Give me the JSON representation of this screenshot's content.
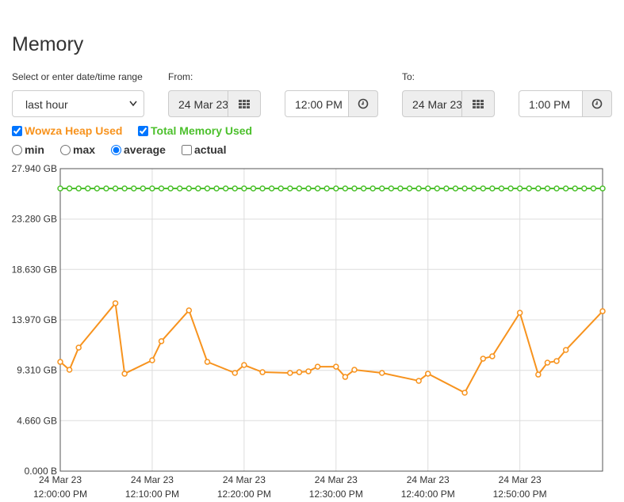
{
  "header": {
    "title": "Memory"
  },
  "controls": {
    "range_label": "Select or enter date/time range",
    "range": "last hour",
    "from_label": "From:",
    "from_date": "24 Mar 23",
    "from_time": "12:00 PM",
    "to_label": "To:",
    "to_date": "24 Mar 23",
    "to_time": "1:00 PM"
  },
  "stat_options": [
    {
      "label": "min",
      "checked": false
    },
    {
      "label": "max",
      "checked": false
    },
    {
      "label": "average",
      "checked": true
    }
  ],
  "actual_option": {
    "label": "actual",
    "checked": false
  },
  "chart_data": {
    "type": "line",
    "series": [
      {
        "name": "Wowza Heap Used",
        "color": "#f7931e",
        "checked": true,
        "x": [
          "12:00:00",
          "12:01:00",
          "12:02:00",
          "12:06:00",
          "12:07:00",
          "12:10:00",
          "12:11:00",
          "12:14:00",
          "12:16:00",
          "12:19:00",
          "12:20:00",
          "12:22:00",
          "12:25:00",
          "12:26:00",
          "12:27:00",
          "12:28:00",
          "12:30:00",
          "12:31:00",
          "12:32:00",
          "12:35:00",
          "12:39:00",
          "12:40:00",
          "12:44:00",
          "12:46:00",
          "12:47:00",
          "12:50:00",
          "12:52:00",
          "12:53:00",
          "12:54:00",
          "12:55:00",
          "12:59:00"
        ],
        "values": [
          10.09,
          9.36,
          11.41,
          15.51,
          9.0,
          10.24,
          12.0,
          14.85,
          10.09,
          9.07,
          9.8,
          9.14,
          9.07,
          9.14,
          9.22,
          9.65,
          9.65,
          8.7,
          9.36,
          9.07,
          8.34,
          9.0,
          7.24,
          10.39,
          10.61,
          14.63,
          8.92,
          10.02,
          10.17,
          11.19,
          14.77
        ]
      },
      {
        "name": "Total Memory Used",
        "color": "#4cc02c",
        "checked": true,
        "x": [
          "12:00:00",
          "12:01:00",
          "12:02:00",
          "12:03:00",
          "12:04:00",
          "12:05:00",
          "12:06:00",
          "12:07:00",
          "12:08:00",
          "12:09:00",
          "12:10:00",
          "12:11:00",
          "12:12:00",
          "12:13:00",
          "12:14:00",
          "12:15:00",
          "12:16:00",
          "12:17:00",
          "12:18:00",
          "12:19:00",
          "12:20:00",
          "12:21:00",
          "12:22:00",
          "12:23:00",
          "12:24:00",
          "12:25:00",
          "12:26:00",
          "12:27:00",
          "12:28:00",
          "12:29:00",
          "12:30:00",
          "12:31:00",
          "12:32:00",
          "12:33:00",
          "12:34:00",
          "12:35:00",
          "12:36:00",
          "12:37:00",
          "12:38:00",
          "12:39:00",
          "12:40:00",
          "12:41:00",
          "12:42:00",
          "12:43:00",
          "12:44:00",
          "12:45:00",
          "12:46:00",
          "12:47:00",
          "12:48:00",
          "12:49:00",
          "12:50:00",
          "12:51:00",
          "12:52:00",
          "12:53:00",
          "12:54:00",
          "12:55:00",
          "12:56:00",
          "12:57:00",
          "12:58:00",
          "12:59:00"
        ],
        "values": [
          26.11,
          26.11,
          26.11,
          26.11,
          26.11,
          26.11,
          26.11,
          26.11,
          26.11,
          26.11,
          26.11,
          26.11,
          26.11,
          26.11,
          26.11,
          26.11,
          26.11,
          26.11,
          26.11,
          26.11,
          26.11,
          26.11,
          26.11,
          26.11,
          26.11,
          26.11,
          26.11,
          26.11,
          26.11,
          26.11,
          26.11,
          26.11,
          26.11,
          26.11,
          26.11,
          26.11,
          26.11,
          26.11,
          26.11,
          26.11,
          26.11,
          26.11,
          26.11,
          26.11,
          26.11,
          26.11,
          26.11,
          26.11,
          26.11,
          26.11,
          26.11,
          26.11,
          26.11,
          26.11,
          26.11,
          26.11,
          26.11,
          26.11,
          26.11,
          26.11
        ]
      }
    ],
    "xlim": [
      "12:00:00",
      "12:59:00"
    ],
    "xticks": [
      {
        "value": "12:00:00",
        "date": "24 Mar 23",
        "label": "12:00:00 PM"
      },
      {
        "value": "12:10:00",
        "date": "24 Mar 23",
        "label": "12:10:00 PM"
      },
      {
        "value": "12:20:00",
        "date": "24 Mar 23",
        "label": "12:20:00 PM"
      },
      {
        "value": "12:30:00",
        "date": "24 Mar 23",
        "label": "12:30:00 PM"
      },
      {
        "value": "12:40:00",
        "date": "24 Mar 23",
        "label": "12:40:00 PM"
      },
      {
        "value": "12:50:00",
        "date": "24 Mar 23",
        "label": "12:50:00 PM"
      }
    ],
    "ylim": [
      0,
      27.94
    ],
    "yticks": [
      {
        "value": 0,
        "label": "0.000 B"
      },
      {
        "value": 4.66,
        "label": "4.660 GB"
      },
      {
        "value": 9.31,
        "label": "9.310 GB"
      },
      {
        "value": 13.97,
        "label": "13.970 GB"
      },
      {
        "value": 18.63,
        "label": "18.630 GB"
      },
      {
        "value": 23.28,
        "label": "23.280 GB"
      },
      {
        "value": 27.94,
        "label": "27.940 GB"
      }
    ],
    "grid": true
  }
}
